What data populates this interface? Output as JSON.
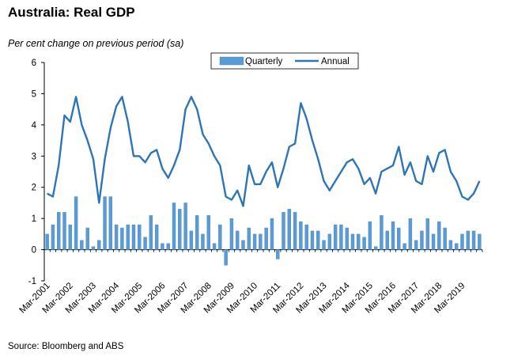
{
  "title": "Australia: Real GDP",
  "subtitle": "Per cent change on previous period (sa)",
  "source": "Source: Bloomberg and ABS",
  "colors": {
    "bar": "#5b9bd5",
    "bar_edge": "#4a86c0",
    "line": "#2e75b6",
    "axis": "#000000"
  },
  "chart_data": {
    "type": "bar+line",
    "title": "Australia: Real GDP",
    "ylabel": "Per cent change on previous period (sa)",
    "ylim": [
      -1,
      6
    ],
    "yticks": [
      -1,
      0,
      1,
      2,
      3,
      4,
      5,
      6
    ],
    "x_tick_labels": [
      "Mar-2001",
      "Mar-2002",
      "Mar-2003",
      "Mar-2004",
      "Mar-2005",
      "Mar-2006",
      "Mar-2007",
      "Mar-2008",
      "Mar-2009",
      "Mar-2010",
      "Mar-2011",
      "Mar-2012",
      "Mar-2013",
      "Mar-2014",
      "Mar-2015",
      "Mar-2016",
      "Mar-2017",
      "Mar-2018",
      "Mar-2019"
    ],
    "legend": [
      "Quarterly",
      "Annual"
    ],
    "legend_position": "top-center",
    "series": [
      {
        "name": "Quarterly",
        "kind": "bar",
        "values": [
          0.5,
          0.8,
          1.2,
          1.2,
          0.8,
          1.7,
          0.3,
          0.7,
          0.1,
          0.3,
          1.7,
          1.7,
          0.8,
          0.7,
          0.8,
          0.8,
          0.8,
          0.4,
          1.1,
          0.8,
          0.2,
          0.2,
          1.5,
          1.3,
          1.5,
          0.6,
          1.1,
          0.5,
          1.1,
          0.2,
          0.8,
          -0.5,
          1.0,
          0.6,
          0.3,
          0.7,
          0.5,
          0.5,
          0.7,
          1.0,
          -0.3,
          1.2,
          1.3,
          1.2,
          0.9,
          0.8,
          0.6,
          0.6,
          0.3,
          0.5,
          0.8,
          0.8,
          0.7,
          0.5,
          0.5,
          0.4,
          0.9,
          0.1,
          1.1,
          0.6,
          0.9,
          0.7,
          0.2,
          1.0,
          0.3,
          0.6,
          1.0,
          0.5,
          0.9,
          0.7,
          0.3,
          0.2,
          0.5,
          0.6,
          0.6,
          0.5
        ]
      },
      {
        "name": "Annual",
        "kind": "line",
        "values": [
          1.8,
          1.7,
          2.7,
          4.3,
          4.1,
          4.9,
          4.0,
          3.5,
          2.9,
          1.5,
          2.9,
          3.9,
          4.6,
          4.9,
          4.1,
          3.0,
          3.0,
          2.8,
          3.1,
          3.2,
          2.6,
          2.3,
          2.7,
          3.2,
          4.5,
          4.9,
          4.5,
          3.7,
          3.4,
          3.0,
          2.7,
          1.7,
          1.6,
          1.9,
          1.4,
          2.7,
          2.1,
          2.1,
          2.5,
          2.8,
          2.0,
          2.6,
          3.3,
          3.4,
          4.7,
          4.2,
          3.5,
          2.9,
          2.2,
          1.9,
          2.2,
          2.5,
          2.8,
          2.9,
          2.6,
          2.1,
          2.3,
          1.8,
          2.5,
          2.6,
          2.7,
          3.3,
          2.4,
          2.8,
          2.2,
          2.1,
          3.0,
          2.5,
          3.1,
          3.2,
          2.5,
          2.2,
          1.7,
          1.6,
          1.8,
          2.2
        ]
      }
    ]
  }
}
